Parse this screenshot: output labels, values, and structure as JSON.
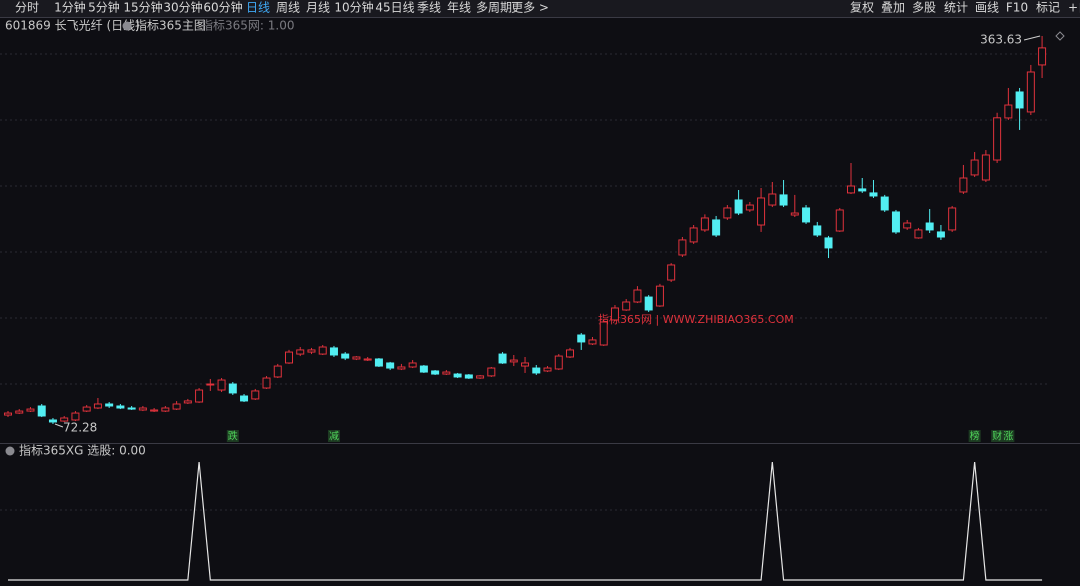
{
  "toolbar": {
    "periods": [
      "分时",
      "1分钟",
      "5分钟",
      "15分钟",
      "30分钟",
      "60分钟",
      "日线",
      "周线",
      "月线",
      "10分钟",
      "45日线",
      "季线",
      "年线",
      "多周期",
      "更多 >"
    ],
    "tools": [
      "复权",
      "叠加",
      "多股",
      "统计",
      "画线",
      "F10",
      "标记",
      "+自"
    ]
  },
  "chart_data": [
    {
      "type": "candlestick",
      "title": "601869 长飞光纤 (日线)",
      "indicator": "指标365主图",
      "indicator_value": "指标365网: 1.00",
      "watermark": "指标365网 | WWW.ZHIBIAO365.COM",
      "up_color": "#e0323c",
      "down_color": "#52eef2",
      "open": [
        79.0,
        80.5,
        82.0,
        85.8,
        75.3,
        74.5,
        75.3,
        82.0,
        84.3,
        87.3,
        85.8,
        84.3,
        82.8,
        82.0,
        82.0,
        83.5,
        88.1,
        88.8,
        101.6,
        97.8,
        102.3,
        93.3,
        91.1,
        99.3,
        107.6,
        118.1,
        124.8,
        126.3,
        124.8,
        129.4,
        124.8,
        121.1,
        120.3,
        121.1,
        118.1,
        113.6,
        115.1,
        115.8,
        112.1,
        109.8,
        109.8,
        109.1,
        106.8,
        108.4,
        124.8,
        118.9,
        115.8,
        114.3,
        112.1,
        113.6,
        122.6,
        139.1,
        132.4,
        131.6,
        150.4,
        157.9,
        163.9,
        167.6,
        160.9,
        180.4,
        199.2,
        209.0,
        218.0,
        225.5,
        227.0,
        240.5,
        233.0,
        221.7,
        236.7,
        244.3,
        229.2,
        234.5,
        221.0,
        212.0,
        217.2,
        245.8,
        248.8,
        245.8,
        242.7,
        231.5,
        219.5,
        212.0,
        223.2,
        216.5,
        218.0,
        246.5,
        259.3,
        255.5,
        270.5,
        302.1,
        321.6,
        306.6,
        341.9
      ],
      "close": [
        80.5,
        82.0,
        83.5,
        78.3,
        73.8,
        76.8,
        80.5,
        85.0,
        87.3,
        85.8,
        84.3,
        83.5,
        84.3,
        82.8,
        84.3,
        87.3,
        89.6,
        97.8,
        102.3,
        105.3,
        95.6,
        89.6,
        97.1,
        106.8,
        115.8,
        126.3,
        127.9,
        127.9,
        130.1,
        124.1,
        121.8,
        122.6,
        121.1,
        115.8,
        114.3,
        115.1,
        118.1,
        111.3,
        109.8,
        111.3,
        107.6,
        106.8,
        108.4,
        114.3,
        118.1,
        120.3,
        118.1,
        110.6,
        114.3,
        123.3,
        127.9,
        133.9,
        135.4,
        148.9,
        159.4,
        163.9,
        172.9,
        157.9,
        175.8,
        191.7,
        210.5,
        219.5,
        227.0,
        214.2,
        234.5,
        230.7,
        236.7,
        242.0,
        245.0,
        236.7,
        230.7,
        224.0,
        214.2,
        204.5,
        233.0,
        251.0,
        247.3,
        243.5,
        233.0,
        216.5,
        223.2,
        218.0,
        218.0,
        212.7,
        234.5,
        257.0,
        270.5,
        274.3,
        302.2,
        311.8,
        309.6,
        336.6,
        354.7
      ],
      "high": [
        82.0,
        83.5,
        85.0,
        87.3,
        76.8,
        78.3,
        82.0,
        86.5,
        91.8,
        88.8,
        87.3,
        85.8,
        85.8,
        84.3,
        85.8,
        89.5,
        91.1,
        99.3,
        106.1,
        106.8,
        103.8,
        94.8,
        98.6,
        108.3,
        117.4,
        127.9,
        130.1,
        129.4,
        131.6,
        130.9,
        126.3,
        123.3,
        122.6,
        121.8,
        118.9,
        117.4,
        120.3,
        116.6,
        112.8,
        112.8,
        110.6,
        109.8,
        109.1,
        115.1,
        126.3,
        124.1,
        122.6,
        116.6,
        115.8,
        124.8,
        129.4,
        140.6,
        137.6,
        150.4,
        161.6,
        166.1,
        175.8,
        169.1,
        177.5,
        193.1,
        212.7,
        221.7,
        229.7,
        228.5,
        236.7,
        248.0,
        239.0,
        249.5,
        254.0,
        255.5,
        244.3,
        236.7,
        224.0,
        213.5,
        234.5,
        268.3,
        257.0,
        255.5,
        244.3,
        233.0,
        225.5,
        219.5,
        233.7,
        221.7,
        236.0,
        266.8,
        276.5,
        278.0,
        306.0,
        324.6,
        324.6,
        341.9,
        363.63
      ],
      "low": [
        77.5,
        79.8,
        81.3,
        77.5,
        72.28,
        73.8,
        74.5,
        81.3,
        83.5,
        84.3,
        83.5,
        82.8,
        82.0,
        81.3,
        81.3,
        82.8,
        87.3,
        88.1,
        97.1,
        96.3,
        94.1,
        88.8,
        90.3,
        98.6,
        106.8,
        117.4,
        123.3,
        124.8,
        124.1,
        122.6,
        120.3,
        120.3,
        119.6,
        115.1,
        112.8,
        112.8,
        114.3,
        110.6,
        109.1,
        109.1,
        106.8,
        106.1,
        106.1,
        107.6,
        117.4,
        115.8,
        110.6,
        109.1,
        111.3,
        112.8,
        121.8,
        127.9,
        131.6,
        130.9,
        149.6,
        157.2,
        163.1,
        156.4,
        160.2,
        178.9,
        197.7,
        207.5,
        216.5,
        212.7,
        225.5,
        229.2,
        231.5,
        216.5,
        235.2,
        235.2,
        227.7,
        222.5,
        212.7,
        196.9,
        216.5,
        245.0,
        245.8,
        242.0,
        231.5,
        215.0,
        218.0,
        211.4,
        215.7,
        210.5,
        216.5,
        245.0,
        257.8,
        254.0,
        268.3,
        300.6,
        293.1,
        304.3,
        332.1
      ],
      "event_labels": [
        null,
        null,
        null,
        null,
        null,
        null,
        null,
        null,
        null,
        null,
        null,
        null,
        null,
        null,
        null,
        null,
        null,
        null,
        null,
        null,
        "跌",
        null,
        null,
        null,
        null,
        null,
        null,
        null,
        null,
        "减",
        null,
        null,
        null,
        null,
        null,
        null,
        null,
        null,
        null,
        null,
        null,
        null,
        null,
        null,
        null,
        null,
        null,
        null,
        null,
        null,
        null,
        null,
        null,
        null,
        null,
        null,
        null,
        null,
        null,
        null,
        null,
        null,
        null,
        null,
        null,
        null,
        null,
        null,
        null,
        null,
        null,
        null,
        null,
        null,
        null,
        null,
        null,
        null,
        null,
        null,
        null,
        null,
        null,
        null,
        null,
        null,
        "榜",
        null,
        "财",
        "涨",
        null,
        null,
        null
      ]
    },
    {
      "type": "line",
      "title": "指标365XG 选股: 0.00",
      "color": "#e6e6e6",
      "values": [
        0,
        0,
        0,
        0,
        0,
        0,
        0,
        0,
        0,
        0,
        0,
        0,
        0,
        0,
        0,
        0,
        0,
        1,
        0,
        0,
        0,
        0,
        0,
        0,
        0,
        0,
        0,
        0,
        0,
        0,
        0,
        0,
        0,
        0,
        0,
        0,
        0,
        0,
        0,
        0,
        0,
        0,
        0,
        0,
        0,
        0,
        0,
        0,
        0,
        0,
        0,
        0,
        0,
        0,
        0,
        0,
        0,
        0,
        0,
        0,
        0,
        0,
        0,
        0,
        0,
        0,
        0,
        0,
        1,
        0,
        0,
        0,
        0,
        0,
        0,
        0,
        0,
        0,
        0,
        0,
        0,
        0,
        0,
        0,
        0,
        0,
        1,
        0,
        0,
        0,
        0,
        0,
        0
      ]
    }
  ]
}
